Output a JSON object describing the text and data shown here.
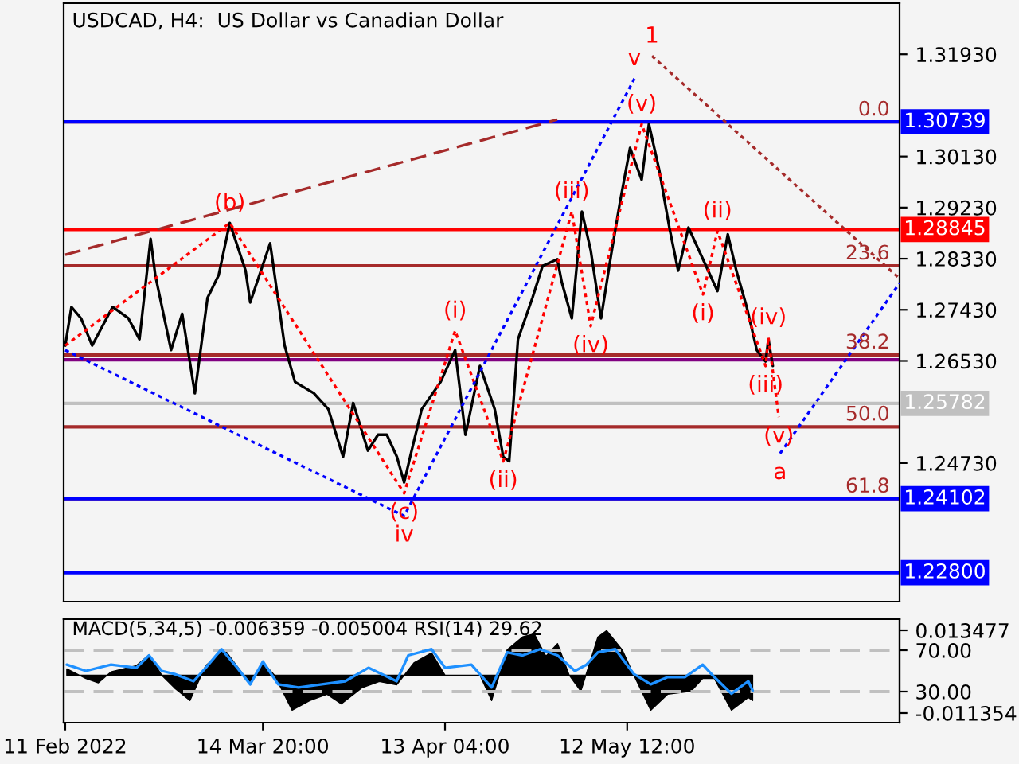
{
  "chart_data": [
    {
      "type": "line",
      "title": "USDCAD, H4:  US Dollar vs Canadian Dollar",
      "xlim": [
        "2022-02-10T18:00",
        "2022-06-25T09:00"
      ],
      "ylim": [
        1.2229,
        1.3283
      ],
      "yticks": [
        {
          "value": 1.3193,
          "label": "1.31930"
        },
        {
          "value": 1.3013,
          "label": "1.30130"
        },
        {
          "value": 1.2923,
          "label": "1.29230"
        },
        {
          "value": 1.2833,
          "label": "1.28330"
        },
        {
          "value": 1.2743,
          "label": "1.27430"
        },
        {
          "value": 1.2653,
          "label": "1.26530"
        },
        {
          "value": 1.2473,
          "label": "1.24730"
        }
      ],
      "tick_labels": "y",
      "grid": false,
      "legend": false,
      "series": [
        {
          "color": "#000000",
          "x": [
            "2022-02-11T00:00",
            "2022-02-12T00:00",
            "2022-02-13T13:00",
            "2022-02-15T08:00",
            "2022-02-18T15:00",
            "2022-02-21T04:00",
            "2022-02-22T23:00",
            "2022-02-24T18:00",
            "2022-02-25T12:00",
            "2022-02-28T01:00",
            "2022-03-01T20:00",
            "2022-03-03T21:00",
            "2022-03-05T22:00",
            "2022-03-07T17:00",
            "2022-03-09T12:00",
            "2022-03-12T01:00",
            "2022-03-12T19:00",
            "2022-03-16T00:00",
            "2022-03-18T08:00",
            "2022-03-20T00:00",
            "2022-03-23T01:00",
            "2022-03-25T09:00",
            "2022-03-27T18:00",
            "2022-03-29T09:00",
            "2022-03-31T18:00",
            "2022-04-02T09:00",
            "2022-04-03T19:00",
            "2022-04-05T10:00",
            "2022-04-06T14:00",
            "2022-04-07T19:00",
            "2022-04-09T10:00",
            "2022-04-12T11:00",
            "2022-04-14T19:00",
            "2022-04-16T11:00",
            "2022-04-18T19:00",
            "2022-04-21T04:00",
            "2022-04-22T13:00",
            "2022-04-23T12:00",
            "2022-04-24T22:00",
            "2022-04-27T06:00",
            "2022-04-28T21:00",
            "2022-05-01T06:00",
            "2022-05-01T23:00",
            "2022-05-03T14:00",
            "2022-05-05T05:00",
            "2022-05-06T15:00",
            "2022-05-08T07:00",
            "2022-05-09T22:00",
            "2022-05-11T08:00",
            "2022-05-12T23:00",
            "2022-05-14T20:00",
            "2022-05-16T00:00",
            "2022-05-17T16:00",
            "2022-05-19T07:00",
            "2022-05-20T17:00",
            "2022-05-22T09:00",
            "2022-05-24T17:00",
            "2022-05-27T01:00",
            "2022-05-28T17:00",
            "2022-05-30T02:00",
            "2022-05-31T18:00",
            "2022-06-02T09:00",
            "2022-06-03T19:00",
            "2022-06-04T06:00",
            "2022-06-04T23:00"
          ],
          "values": [
            1.268,
            1.2748,
            1.2728,
            1.268,
            1.2748,
            1.2728,
            1.2691,
            1.2868,
            1.2804,
            1.2672,
            1.2736,
            1.2596,
            1.2764,
            1.2804,
            1.2896,
            1.2812,
            1.2756,
            1.286,
            1.268,
            1.2616,
            1.2596,
            1.2568,
            1.2484,
            1.2579,
            1.2495,
            1.2523,
            1.2523,
            1.2484,
            1.2439,
            1.2495,
            1.2568,
            1.2616,
            1.2672,
            1.2523,
            1.2644,
            1.2568,
            1.2484,
            1.2476,
            1.2691,
            1.2764,
            1.282,
            1.2832,
            1.2792,
            1.2728,
            1.2916,
            1.2848,
            1.2728,
            1.284,
            1.2932,
            1.3028,
            1.2972,
            1.307,
            1.2989,
            1.2888,
            1.2812,
            1.2888,
            1.2832,
            1.2776,
            1.2876,
            1.2812,
            1.2748,
            1.2672,
            1.2652,
            1.2691,
            1.2644
          ]
        },
        {
          "color": "#ff0000",
          "line_style": "dotted",
          "x": [
            "2022-02-11T00:00",
            "2022-03-09T12:00",
            "2022-04-06T14:00",
            "2022-04-14T19:00",
            "2022-04-22T13:00",
            "2022-05-03T14:00",
            "2022-05-06T15:00",
            "2022-05-14T20:00",
            "2022-05-24T17:00",
            "2022-05-27T01:00",
            "2022-06-03T19:00",
            "2022-06-04T06:00",
            "2022-06-05T22:00"
          ],
          "values": [
            1.268,
            1.2896,
            1.242,
            1.2706,
            1.2476,
            1.2916,
            1.2714,
            1.307,
            1.277,
            1.2882,
            1.2644,
            1.2694,
            1.2554
          ]
        },
        {
          "color": "#0000ff",
          "line_style": "dotted",
          "x": [
            "2022-02-11T00:00",
            "2022-04-06T14:00",
            "2022-05-13T16:00"
          ],
          "values": [
            1.2672,
            1.238,
            1.315
          ]
        },
        {
          "color": "#0000ff",
          "line_style": "dotted",
          "x": [
            "2022-06-06T03:00",
            "2022-06-25T09:00"
          ],
          "values": [
            1.249,
            1.279
          ]
        },
        {
          "color": "#a52a2a",
          "line_style": "dashed",
          "x": [
            "2022-02-11T00:00",
            "2022-05-01T06:00"
          ],
          "values": [
            1.284,
            1.3078
          ]
        },
        {
          "color": "#a52a2a",
          "line_style": "dotted",
          "x": [
            "2022-05-16T12:00",
            "2022-06-25T09:00"
          ],
          "values": [
            1.319,
            1.2798
          ]
        }
      ],
      "ref_lines": [
        {
          "axis": "y",
          "value": 1.30739,
          "color": "#a52a2a"
        },
        {
          "axis": "y",
          "value": 1.30739,
          "label": "1.30739",
          "color": "#0000ff"
        },
        {
          "axis": "y",
          "value": 1.28845,
          "label": "1.28845",
          "color": "#ff0000"
        },
        {
          "axis": "y",
          "value": 1.28205,
          "color": "#a52a2a"
        },
        {
          "axis": "y",
          "value": 1.26637,
          "color": "#a52a2a"
        },
        {
          "axis": "y",
          "value": 1.2655,
          "color": "#800080"
        },
        {
          "axis": "y",
          "value": 1.25782,
          "label": "1.25782",
          "color": "#c0c0c0"
        },
        {
          "axis": "y",
          "value": 1.25369,
          "color": "#a52a2a"
        },
        {
          "axis": "y",
          "value": 1.24102,
          "color": "#a52a2a"
        },
        {
          "axis": "y",
          "value": 1.24102,
          "label": "1.24102",
          "color": "#0000ff"
        },
        {
          "axis": "y",
          "value": 1.228,
          "label": "1.22800",
          "color": "#0000ff"
        }
      ],
      "annotations": [
        {
          "text": "(b)",
          "x": "2022-03-09T12:00",
          "y": 1.2896
        },
        {
          "text": "(c)",
          "x": "2022-04-06T14:00",
          "y": 1.242
        },
        {
          "text": "iv",
          "x": "2022-04-06T14:00",
          "y": 1.238
        },
        {
          "text": "(i)",
          "x": "2022-04-14T19:00",
          "y": 1.2706
        },
        {
          "text": "(ii)",
          "x": "2022-04-22T13:00",
          "y": 1.2476
        },
        {
          "text": "(iii)",
          "x": "2022-05-03T14:00",
          "y": 1.2916
        },
        {
          "text": "(iv)",
          "x": "2022-05-06T15:00",
          "y": 1.2714
        },
        {
          "text": "(v)",
          "x": "2022-05-14T20:00",
          "y": 1.307
        },
        {
          "text": "v",
          "x": "2022-05-13T16:00",
          "y": 1.315
        },
        {
          "text": "1",
          "x": "2022-05-16T12:00",
          "y": 1.319
        },
        {
          "text": "(ii)",
          "x": "2022-05-27T01:00",
          "y": 1.2882
        },
        {
          "text": "(i)",
          "x": "2022-05-24T17:00",
          "y": 1.277
        },
        {
          "text": "(iv)",
          "x": "2022-06-04T06:00",
          "y": 1.2694
        },
        {
          "text": "(iii)",
          "x": "2022-06-03T19:00",
          "y": 1.2644
        },
        {
          "text": "(v)",
          "x": "2022-06-05T22:00",
          "y": 1.2554
        },
        {
          "text": "a",
          "x": "2022-06-06T03:00",
          "y": 1.249
        },
        {
          "text": "0.0",
          "x": "2022-06-24T12:00",
          "y": 1.30739
        },
        {
          "text": "23.6",
          "x": "2022-06-24T12:00",
          "y": 1.28205
        },
        {
          "text": "38.2",
          "x": "2022-06-24T12:00",
          "y": 1.26637
        },
        {
          "text": "50.0",
          "x": "2022-06-24T12:00",
          "y": 1.25369
        },
        {
          "text": "61.8",
          "x": "2022-06-24T12:00",
          "y": 1.24102
        }
      ]
    },
    {
      "type": "area",
      "title": "MACD(5,34,5) -0.006359 -0.005004 RSI(14) 29.62",
      "xlim": [
        "2022-02-10T18:00",
        "2022-06-25T09:00"
      ],
      "ylim": [
        -0.01422,
        0.01682
      ],
      "yticks": [
        {
          "value": 0.013477,
          "label": "0.013477"
        },
        {
          "value": -0.011354,
          "label": "-0.011354"
        }
      ],
      "y2lim": [
        0,
        100
      ],
      "y2ticks": [
        {
          "value": 70,
          "label": "70.00"
        },
        {
          "value": 30,
          "label": "30.00"
        }
      ],
      "xticks": [
        {
          "value": "2022-02-11T00:00",
          "label": "11 Feb 2022"
        },
        {
          "value": "2022-03-14T20:00",
          "label": "14 Mar 20:00"
        },
        {
          "value": "2022-04-13T04:00",
          "label": "13 Apr 04:00"
        },
        {
          "value": "2022-05-12T12:00",
          "label": "12 May 12:00"
        }
      ],
      "grid": false,
      "legend": false,
      "series": [
        {
          "color": "#000000",
          "x": [
            "2022-02-11T06:00",
            "2022-02-14T08:00",
            "2022-02-16T08:00",
            "2022-02-18T09:00",
            "2022-02-22T11:00",
            "2022-02-24T12:00",
            "2022-02-26T13:00",
            "2022-02-28T14:00",
            "2022-03-03T02:00",
            "2022-03-05T15:00",
            "2022-03-08T17:00",
            "2022-03-11T18:00",
            "2022-03-12T19:00",
            "2022-03-14T20:00",
            "2022-03-16T17:00",
            "2022-03-19T13:00",
            "2022-03-22T09:00",
            "2022-03-25T04:00",
            "2022-03-27T11:00",
            "2022-03-30T18:00",
            "2022-04-02T14:00",
            "2022-04-05T09:00",
            "2022-04-08T05:00",
            "2022-04-11T00:00",
            "2022-04-13T04:00",
            "2022-04-18T19:00",
            "2022-04-20T16:00",
            "2022-04-23T04:00",
            "2022-04-25T16:00",
            "2022-04-27T13:00",
            "2022-04-29T10:00",
            "2022-05-01T07:00",
            "2022-05-03T04:00",
            "2022-05-05T01:00",
            "2022-05-07T19:00",
            "2022-05-09T05:00",
            "2022-05-11T17:00",
            "2022-05-13T14:00",
            "2022-05-16T07:00",
            "2022-05-19T01:00",
            "2022-05-22T19:00",
            "2022-05-24T16:00",
            "2022-05-26T13:00",
            "2022-05-29T07:00",
            "2022-06-01T00:00",
            "2022-06-01T17:00"
          ],
          "values": [
            0.0019,
            -0.001,
            -0.0023,
            0.001,
            0.0029,
            0.0061,
            0,
            -0.0038,
            -0.0076,
            0.0029,
            0.0076,
            0,
            -0.0029,
            0.0038,
            0,
            -0.0105,
            -0.0076,
            -0.0057,
            -0.0086,
            -0.0038,
            -0.0019,
            -0.0029,
            0.0038,
            0.0067,
            0,
            0,
            -0.0076,
            0.0076,
            0.0115,
            0.0124,
            0.0057,
            0.0095,
            0,
            -0.0048,
            0.0115,
            0.0134,
            0.0076,
            0,
            -0.0105,
            -0.0057,
            -0.0048,
            -0.001,
            -0.001,
            -0.0105,
            -0.0067,
            -0.0076
          ]
        },
        {
          "type": "line",
          "axis": "y2",
          "color": "#1e90ff",
          "x": [
            "2022-02-11T06:00",
            "2022-02-14T08:00",
            "2022-02-18T09:00",
            "2022-02-22T11:00",
            "2022-02-24T12:00",
            "2022-02-26T13:00",
            "2022-02-28T14:00",
            "2022-03-03T16:00",
            "2022-03-05T15:00",
            "2022-03-08T04:00",
            "2022-03-10T17:00",
            "2022-03-12T19:00",
            "2022-03-14T20:00",
            "2022-03-17T07:00",
            "2022-03-20T14:00",
            "2022-03-24T08:00",
            "2022-03-28T02:00",
            "2022-03-31T20:00",
            "2022-04-05T09:00",
            "2022-04-07T06:00",
            "2022-04-11T00:00",
            "2022-04-13T04:00",
            "2022-04-17T10:00",
            "2022-04-20T16:00",
            "2022-04-23T04:00",
            "2022-04-25T16:00",
            "2022-04-28T11:00",
            "2022-05-01T07:00",
            "2022-05-04T02:00",
            "2022-05-05T23:00",
            "2022-05-07T19:00",
            "2022-05-10T14:00",
            "2022-05-13T14:00",
            "2022-05-16T07:00",
            "2022-05-19T01:00",
            "2022-05-21T19:00",
            "2022-05-24T16:00",
            "2022-05-26T13:00",
            "2022-05-29T07:00",
            "2022-06-01T00:00",
            "2022-06-01T17:00"
          ],
          "values": [
            56,
            50,
            56,
            53,
            65,
            50,
            47,
            40,
            53,
            71,
            53,
            37,
            59,
            37,
            34,
            37,
            40,
            53,
            40,
            65,
            71,
            53,
            56,
            34,
            68,
            65,
            71,
            65,
            50,
            56,
            68,
            71,
            47,
            37,
            44,
            44,
            56,
            44,
            28,
            40,
            31
          ]
        }
      ],
      "ref_lines": [
        {
          "axis": "y2",
          "value": 70,
          "color": "#c0c0c0",
          "line_style": "dashed"
        },
        {
          "axis": "y2",
          "value": 30,
          "color": "#c0c0c0",
          "line_style": "dashed"
        }
      ]
    }
  ]
}
